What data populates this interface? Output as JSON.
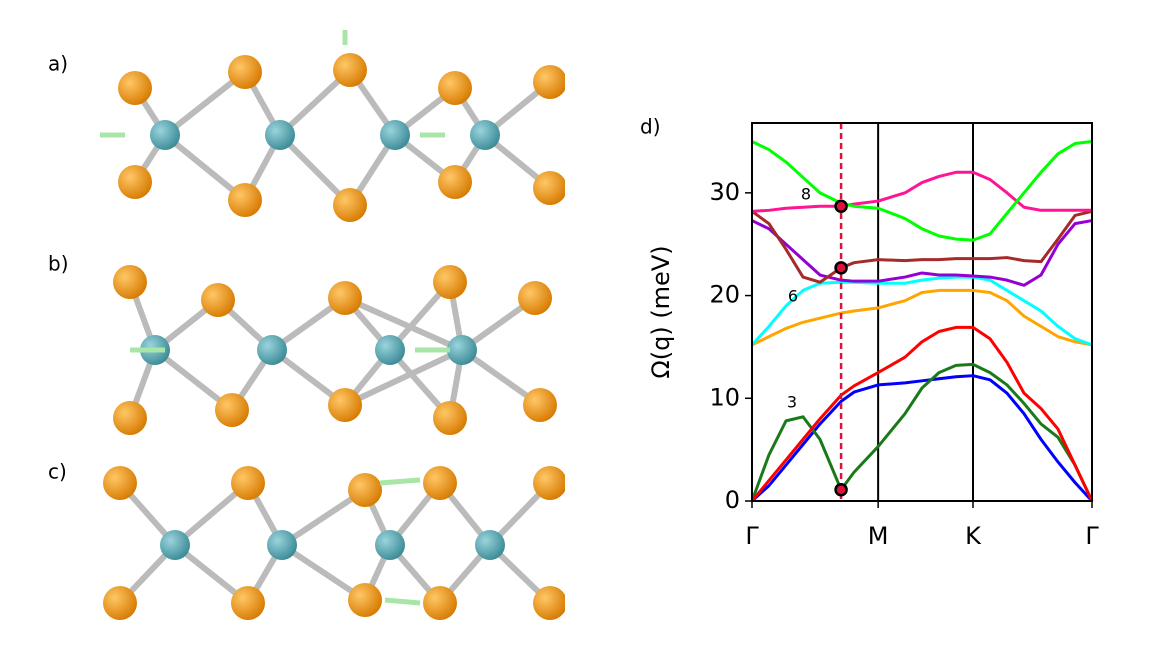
{
  "panels": {
    "a": "a)",
    "b": "b)",
    "c": "c)",
    "d": "d)"
  },
  "chart_data": {
    "type": "line",
    "ylabel": "Ω(q) (meV)",
    "x": [
      0,
      0.05,
      0.1,
      0.15,
      0.2,
      0.262,
      0.3,
      0.371,
      0.45,
      0.5,
      0.55,
      0.6,
      0.65,
      0.7,
      0.75,
      0.8,
      0.85,
      0.9,
      0.95,
      1
    ],
    "xlim": [
      0,
      1
    ],
    "xticks": [
      {
        "value": 0,
        "label": "Γ"
      },
      {
        "value": 0.371,
        "label": "M"
      },
      {
        "value": 0.65,
        "label": "K"
      },
      {
        "value": 1,
        "label": "Γ"
      }
    ],
    "ylim": [
      0,
      36.8
    ],
    "yticks": [
      0,
      10,
      20,
      30
    ],
    "series": [
      {
        "color": "#0000ff",
        "values": [
          0,
          1.5,
          3.5,
          5.5,
          7.5,
          9.7,
          10.6,
          11.3,
          11.5,
          11.7,
          11.9,
          12.1,
          12.2,
          11.8,
          10.5,
          8.5,
          6.0,
          3.8,
          1.8,
          0
        ]
      },
      {
        "color": "#1a7a1a",
        "values": [
          0,
          4.5,
          7.8,
          8.2,
          6.0,
          1.1,
          2.8,
          5.3,
          8.5,
          11.0,
          12.5,
          13.2,
          13.3,
          12.5,
          11.3,
          9.5,
          7.5,
          6.2,
          3.5,
          0
        ]
      },
      {
        "color": "#ff0000",
        "values": [
          0,
          2.0,
          4.0,
          6.0,
          8.0,
          10.3,
          11.2,
          12.5,
          14.0,
          15.5,
          16.5,
          16.9,
          16.9,
          15.8,
          13.5,
          10.5,
          9.0,
          7.0,
          3.5,
          0
        ]
      },
      {
        "color": "#ffa500",
        "values": [
          15.2,
          16.0,
          16.8,
          17.4,
          17.8,
          18.3,
          18.5,
          18.8,
          19.5,
          20.3,
          20.5,
          20.5,
          20.5,
          20.3,
          19.5,
          18.0,
          17.0,
          16.0,
          15.5,
          15.2
        ]
      },
      {
        "color": "#00ffff",
        "values": [
          15.2,
          17.0,
          19.0,
          20.5,
          21.2,
          21.3,
          21.3,
          21.2,
          21.2,
          21.5,
          21.7,
          21.8,
          21.8,
          21.5,
          20.5,
          19.5,
          18.5,
          17.0,
          15.8,
          15.2
        ]
      },
      {
        "color": "#9400d3",
        "values": [
          27.3,
          26.5,
          25.0,
          23.5,
          22.0,
          21.5,
          21.4,
          21.4,
          21.8,
          22.2,
          22.0,
          22.0,
          21.9,
          21.8,
          21.5,
          21.0,
          22.0,
          25.0,
          27.0,
          27.3
        ]
      },
      {
        "color": "#a52a2a",
        "values": [
          28.2,
          27.0,
          24.5,
          21.8,
          21.3,
          22.7,
          23.2,
          23.5,
          23.4,
          23.5,
          23.5,
          23.6,
          23.6,
          23.6,
          23.7,
          23.4,
          23.3,
          25.5,
          27.8,
          28.2
        ]
      },
      {
        "color": "#ff1493",
        "values": [
          28.2,
          28.3,
          28.5,
          28.6,
          28.7,
          28.7,
          28.9,
          29.2,
          30.0,
          31.0,
          31.6,
          32.0,
          32.0,
          31.3,
          30.0,
          28.6,
          28.3,
          28.3,
          28.3,
          28.3
        ]
      },
      {
        "color": "#00ff00",
        "values": [
          35.0,
          34.2,
          33.0,
          31.5,
          30.0,
          29.0,
          28.7,
          28.5,
          27.5,
          26.5,
          25.8,
          25.5,
          25.4,
          26.0,
          28.0,
          30.0,
          32.0,
          33.8,
          34.8,
          35.0
        ]
      }
    ],
    "symmetry_lines": [
      0.371,
      0.65
    ],
    "highlight": {
      "x": 0.262,
      "color": "#dc143c",
      "values": [
        1.1,
        22.7,
        28.7
      ]
    },
    "annotations": [
      "3",
      "6",
      "8"
    ]
  }
}
